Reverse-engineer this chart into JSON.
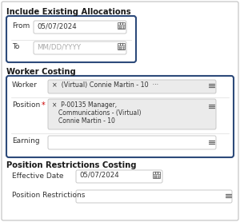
{
  "bg_color": "#f2f2f2",
  "panel_bg": "#ffffff",
  "border_color": "#c8c8c8",
  "highlight_border": "#2d4a7a",
  "outer_border": "#c0c0c0",
  "section1_title": "Include Existing Allocations",
  "section2_title": "Worker Costing",
  "section3_title": "Position Restrictions Costing",
  "from_label": "From",
  "to_label": "To",
  "from_value": "05/07/2024",
  "to_value": "MM/DD/YYYY",
  "worker_label": "Worker",
  "worker_value": "×  (Virtual) Connie Martin - 10  ···",
  "position_label": "Position",
  "position_line1": "×  P-00135 Manager,",
  "position_line2": "Communications - (Virtual)",
  "position_line3": "Connie Martin - 10",
  "earning_label": "Earning",
  "effdate_label": "Effective Date",
  "effdate_value": "05/07/2024",
  "posrestr_label": "Position Restrictions",
  "field_bg_gray": "#ebebeb",
  "field_bg_white": "#ffffff",
  "text_dark": "#333333",
  "text_placeholder": "#aaaaaa",
  "title_color": "#1a1a1a",
  "red_star": "#cc0000",
  "icon_color": "#666666",
  "line_sep": "#dddddd"
}
